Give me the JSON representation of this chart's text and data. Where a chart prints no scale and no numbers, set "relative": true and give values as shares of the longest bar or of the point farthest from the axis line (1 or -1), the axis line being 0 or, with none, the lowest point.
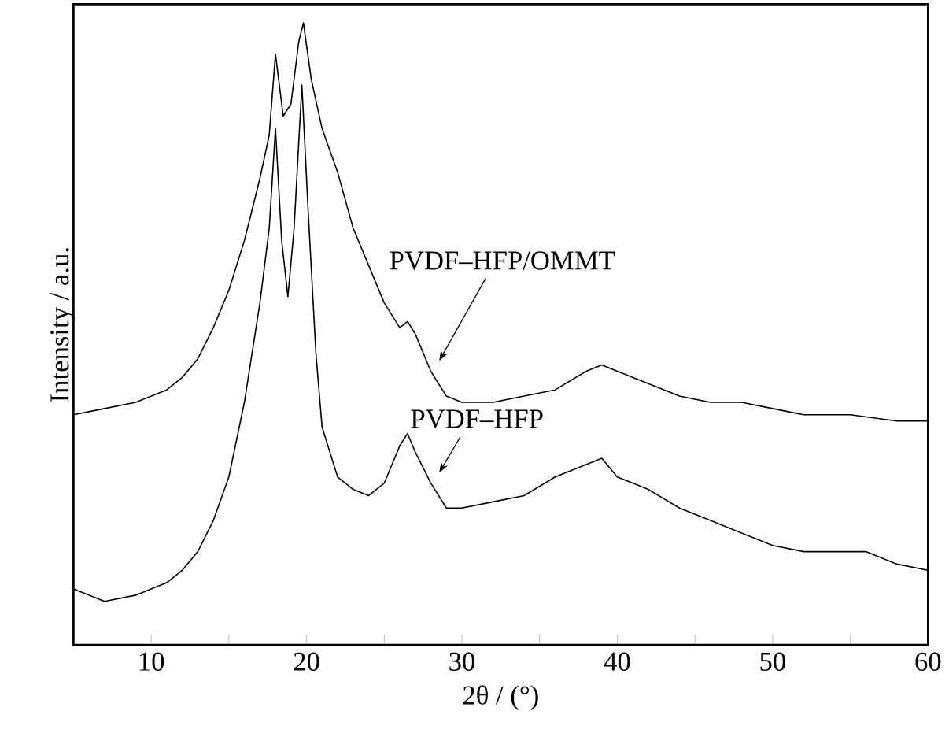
{
  "chart_data": {
    "type": "line",
    "relative": true,
    "xlabel": "2θ / (°)",
    "ylabel": "Intensity / a.u.",
    "xlim": [
      5,
      60
    ],
    "xticks": [
      10,
      {
        "value": 15,
        "label": null
      },
      20,
      {
        "value": 25,
        "label": null
      },
      30,
      {
        "value": 35,
        "label": null
      },
      40,
      {
        "value": 45,
        "label": null
      },
      50,
      {
        "value": 55,
        "label": null
      },
      60
    ],
    "grid": false,
    "marker": "none",
    "line_style": "solid",
    "series": [
      {
        "name": "PVDF–HFP/OMMT",
        "color": "#000000",
        "x": [
          5,
          7,
          9,
          11,
          12,
          13,
          14,
          15,
          16,
          17,
          17.6,
          18,
          18.5,
          19,
          19.5,
          19.8,
          20.3,
          21,
          22,
          23,
          24,
          25,
          26,
          26.5,
          27,
          28,
          29,
          30,
          32,
          34,
          36,
          38,
          39,
          40,
          42,
          44,
          46,
          48,
          50,
          52,
          55,
          58,
          60
        ],
        "values": [
          0.37,
          0.38,
          0.39,
          0.41,
          0.43,
          0.46,
          0.51,
          0.57,
          0.65,
          0.75,
          0.82,
          0.95,
          0.85,
          0.87,
          0.97,
          1.0,
          0.91,
          0.83,
          0.76,
          0.67,
          0.61,
          0.55,
          0.51,
          0.52,
          0.5,
          0.44,
          0.4,
          0.39,
          0.39,
          0.4,
          0.41,
          0.44,
          0.45,
          0.44,
          0.42,
          0.4,
          0.39,
          0.39,
          0.38,
          0.37,
          0.37,
          0.36,
          0.36
        ]
      },
      {
        "name": "PVDF–HFP",
        "color": "#000000",
        "x": [
          5,
          7,
          9,
          11,
          12,
          13,
          14,
          15,
          16,
          17,
          17.6,
          18,
          18.4,
          18.8,
          19.2,
          19.7,
          20.1,
          20.6,
          21,
          22,
          23,
          24,
          25,
          26,
          26.5,
          27,
          28,
          29,
          30,
          32,
          34,
          36,
          38,
          39,
          40,
          42,
          44,
          46,
          48,
          50,
          52,
          54,
          56,
          58,
          60
        ],
        "values": [
          0.09,
          0.07,
          0.08,
          0.1,
          0.12,
          0.15,
          0.2,
          0.27,
          0.39,
          0.55,
          0.67,
          0.83,
          0.65,
          0.56,
          0.67,
          0.9,
          0.7,
          0.47,
          0.35,
          0.27,
          0.25,
          0.24,
          0.26,
          0.32,
          0.34,
          0.31,
          0.26,
          0.22,
          0.22,
          0.23,
          0.24,
          0.27,
          0.29,
          0.3,
          0.27,
          0.25,
          0.22,
          0.2,
          0.18,
          0.16,
          0.15,
          0.15,
          0.15,
          0.13,
          0.12
        ]
      }
    ]
  }
}
